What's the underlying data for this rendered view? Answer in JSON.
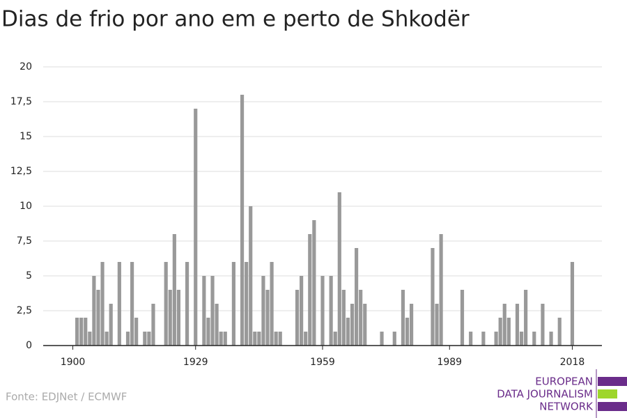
{
  "chart_data": {
    "type": "bar",
    "title": "Dias de frio por ano em e perto de Shkodër",
    "source": "Fonte: EDJNet / ECMWF",
    "logo": [
      "EUROPEAN",
      "DATA JOURNALISM",
      "NETWORK"
    ],
    "color": "#999999",
    "x": [
      1900,
      1901,
      1902,
      1903,
      1904,
      1905,
      1906,
      1907,
      1908,
      1909,
      1910,
      1911,
      1912,
      1913,
      1914,
      1915,
      1916,
      1917,
      1918,
      1919,
      1920,
      1921,
      1922,
      1923,
      1924,
      1925,
      1926,
      1927,
      1928,
      1929,
      1930,
      1931,
      1932,
      1933,
      1934,
      1935,
      1936,
      1937,
      1938,
      1939,
      1940,
      1941,
      1942,
      1943,
      1944,
      1945,
      1946,
      1947,
      1948,
      1949,
      1950,
      1951,
      1952,
      1953,
      1954,
      1955,
      1956,
      1957,
      1958,
      1959,
      1960,
      1961,
      1962,
      1963,
      1964,
      1965,
      1966,
      1967,
      1968,
      1969,
      1970,
      1971,
      1972,
      1973,
      1974,
      1975,
      1976,
      1977,
      1978,
      1979,
      1980,
      1981,
      1982,
      1983,
      1984,
      1985,
      1986,
      1987,
      1988,
      1989,
      1990,
      1991,
      1992,
      1993,
      1994,
      1995,
      1996,
      1997,
      1998,
      1999,
      2000,
      2001,
      2002,
      2003,
      2004,
      2005,
      2006,
      2007,
      2008,
      2009,
      2010,
      2011,
      2012,
      2013,
      2014,
      2015,
      2016,
      2017,
      2018
    ],
    "values": [
      0,
      2,
      2,
      2,
      1,
      5,
      4,
      6,
      1,
      3,
      0,
      6,
      0,
      1,
      6,
      2,
      0,
      1,
      1,
      3,
      0,
      0,
      6,
      4,
      8,
      4,
      0,
      6,
      0,
      17,
      0,
      5,
      2,
      5,
      3,
      1,
      1,
      0,
      6,
      0,
      18,
      6,
      10,
      1,
      1,
      5,
      4,
      6,
      1,
      1,
      0,
      0,
      0,
      4,
      5,
      1,
      8,
      9,
      0,
      5,
      0,
      5,
      1,
      11,
      4,
      2,
      3,
      7,
      4,
      3,
      0,
      0,
      0,
      1,
      0,
      0,
      1,
      0,
      4,
      2,
      3,
      0,
      0,
      0,
      0,
      7,
      3,
      8,
      0,
      0,
      0,
      0,
      4,
      0,
      1,
      0,
      0,
      1,
      0,
      0,
      1,
      2,
      3,
      2,
      0,
      3,
      1,
      4,
      0,
      1,
      0,
      3,
      0,
      1,
      0,
      2,
      0,
      0,
      6
    ],
    "xlim": [
      1893,
      2025
    ],
    "xticks": [
      1900,
      1929,
      1959,
      1989,
      2018
    ],
    "ylim": [
      0,
      20
    ],
    "yticks": [
      0,
      {
        "value": 2.5,
        "label": "2,5"
      },
      5,
      {
        "value": 7.5,
        "label": "7,5"
      },
      10,
      {
        "value": 12.5,
        "label": "12,5"
      },
      15,
      {
        "value": 17.5,
        "label": "17,5"
      },
      20
    ],
    "grid": true
  }
}
